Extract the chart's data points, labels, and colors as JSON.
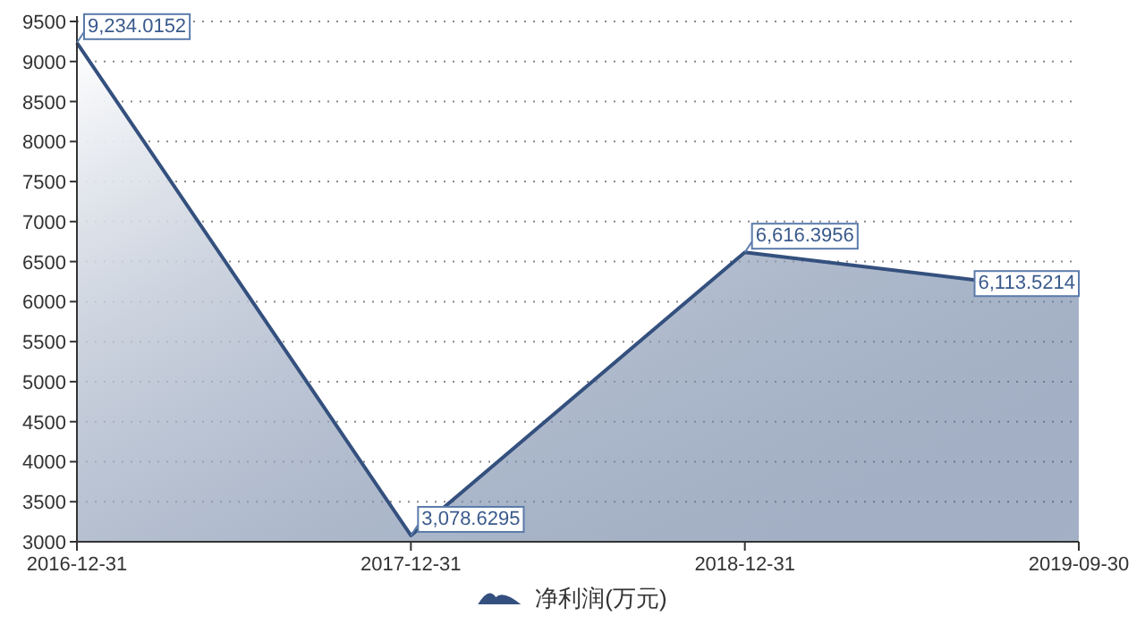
{
  "chart_data": {
    "type": "area",
    "categories": [
      "2016-12-31",
      "2017-12-31",
      "2018-12-31",
      "2019-09-30"
    ],
    "series": [
      {
        "name": "净利润(万元)",
        "color": "#34507e",
        "values": [
          9234.0152,
          3078.6295,
          6616.3956,
          6113.5214
        ],
        "value_labels": [
          "9,234.0152",
          "3,078.6295",
          "6,616.3956",
          "6,113.5214"
        ]
      }
    ],
    "ylim": [
      3000,
      9500
    ],
    "yticks": [
      3000,
      3500,
      4000,
      4500,
      5000,
      5500,
      6000,
      6500,
      7000,
      7500,
      8000,
      8500,
      9000,
      9500
    ],
    "grid": "y",
    "legend": "bottom"
  }
}
